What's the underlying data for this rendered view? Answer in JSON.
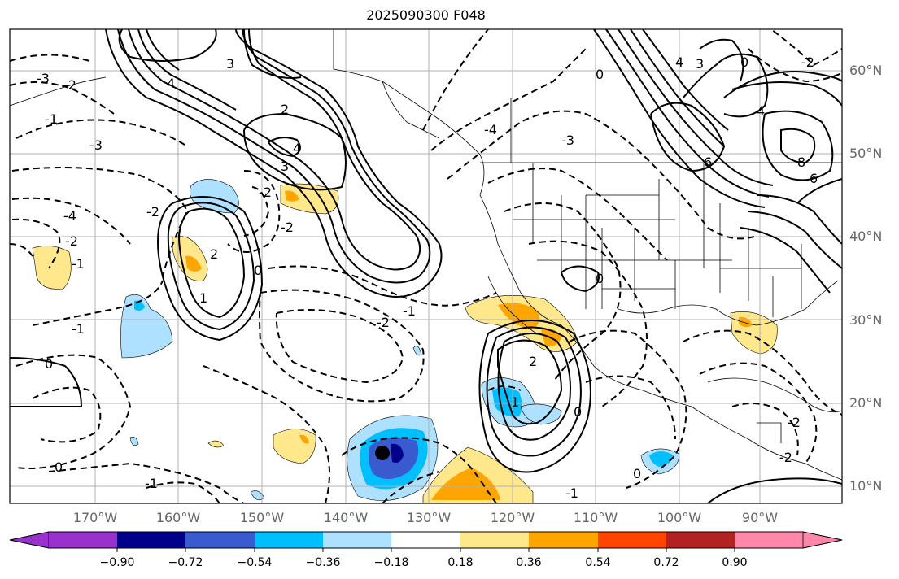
{
  "title": "2025090300 F048",
  "lat_labels": [
    "60°N",
    "50°N",
    "40°N",
    "30°N",
    "20°N",
    "10°N"
  ],
  "lon_labels": [
    "170°W",
    "160°W",
    "150°W",
    "140°W",
    "130°W",
    "120°W",
    "110°W",
    "100°W",
    "90°W"
  ],
  "colorbar": {
    "labels": [
      "−0.90",
      "−0.72",
      "−0.54",
      "−0.36",
      "−0.18",
      "0.18",
      "0.36",
      "0.54",
      "0.72",
      "0.90"
    ],
    "colors": [
      "#9932cc",
      "#00008b",
      "#3a5ad0",
      "#00bfff",
      "#aee0ff",
      "#ffffff",
      "#ffe88c",
      "#ffa500",
      "#ff4500",
      "#b22222",
      "#ff88aa"
    ]
  },
  "contour_labels": [
    "-3",
    "-2",
    "-1",
    "-3",
    "-4",
    "-2",
    "-1",
    "-1",
    "0",
    "0",
    "-2",
    "-1",
    "3",
    "4",
    "2",
    "4",
    "3",
    "-2",
    "2",
    "0",
    "1",
    "-2",
    "-2",
    "-4",
    "-3",
    "0",
    "0",
    "-2",
    "4",
    "6",
    "8",
    "6",
    "4",
    "3",
    "2",
    "0",
    "0",
    "-1",
    "1",
    "-1",
    "-2",
    "-2",
    "0"
  ],
  "shaded_colors": {
    "neg_light": "#aee0ff",
    "neg_mid": "#00bfff",
    "neg_dark": "#3a5ad0",
    "neg_darker": "#00008b",
    "pos_light": "#ffe88c",
    "pos_mid": "#ffa500"
  }
}
